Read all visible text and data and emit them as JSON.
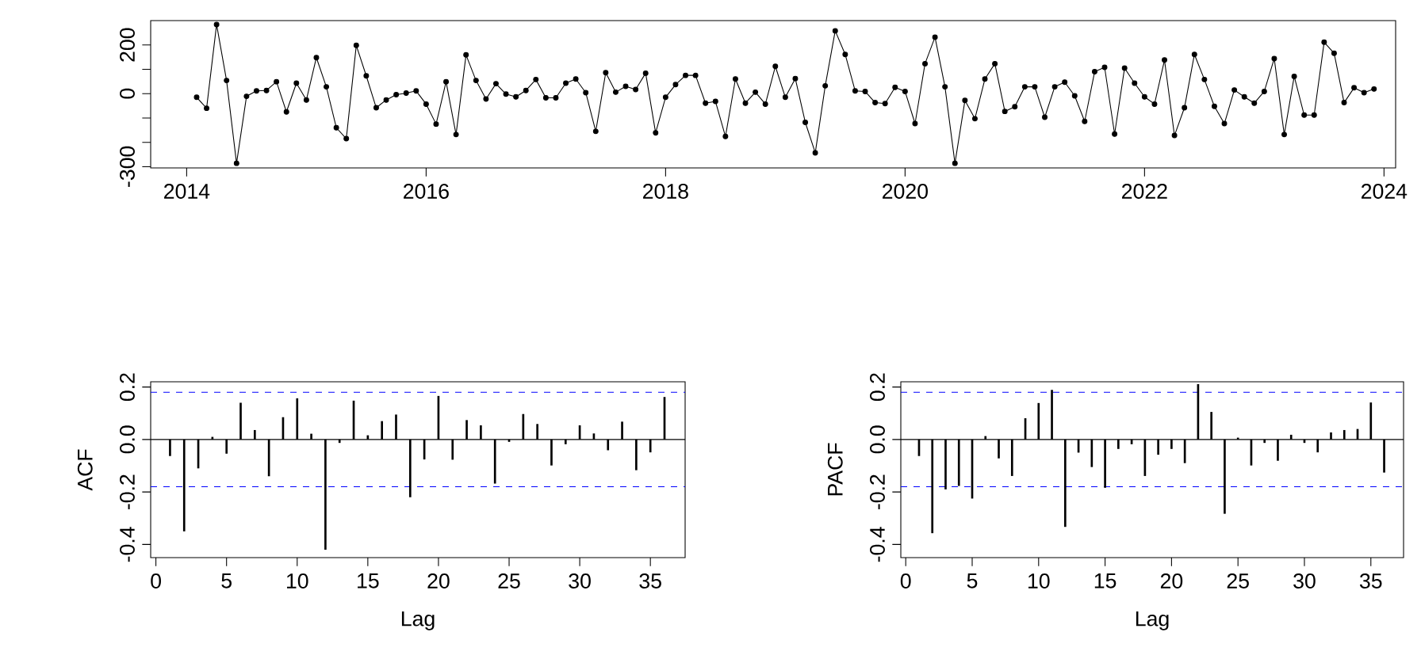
{
  "chart_data": [
    {
      "type": "line",
      "color": "#000000",
      "marker": "circle",
      "line_style": "solid",
      "x": [
        "2014-02",
        "2014-03",
        "2014-04",
        "2014-05",
        "2014-06",
        "2014-07",
        "2014-08",
        "2014-09",
        "2014-10",
        "2014-11",
        "2014-12",
        "2015-01",
        "2015-02",
        "2015-03",
        "2015-04",
        "2015-05",
        "2015-06",
        "2015-07",
        "2015-08",
        "2015-09",
        "2015-10",
        "2015-11",
        "2015-12",
        "2016-01",
        "2016-02",
        "2016-03",
        "2016-04",
        "2016-05",
        "2016-06",
        "2016-07",
        "2016-08",
        "2016-09",
        "2016-10",
        "2016-11",
        "2016-12",
        "2017-01",
        "2017-02",
        "2017-03",
        "2017-04",
        "2017-05",
        "2017-06",
        "2017-07",
        "2017-08",
        "2017-09",
        "2017-10",
        "2017-11",
        "2017-12",
        "2018-01",
        "2018-02",
        "2018-03",
        "2018-04",
        "2018-05",
        "2018-06",
        "2018-07",
        "2018-08",
        "2018-09",
        "2018-10",
        "2018-11",
        "2018-12",
        "2019-01",
        "2019-02",
        "2019-03",
        "2019-04",
        "2019-05",
        "2019-06",
        "2019-07",
        "2019-08",
        "2019-09",
        "2019-10",
        "2019-11",
        "2019-12",
        "2020-01",
        "2020-02",
        "2020-03",
        "2020-04",
        "2020-05",
        "2020-06",
        "2020-07",
        "2020-08",
        "2020-09",
        "2020-10",
        "2020-11",
        "2020-12",
        "2021-01",
        "2021-02",
        "2021-03",
        "2021-04",
        "2021-05",
        "2021-06",
        "2021-07",
        "2021-08",
        "2021-09",
        "2021-10",
        "2021-11",
        "2021-12",
        "2022-01",
        "2022-02",
        "2022-03",
        "2022-04",
        "2022-05",
        "2022-06",
        "2022-07",
        "2022-08",
        "2022-09",
        "2022-10",
        "2022-11",
        "2022-12",
        "2023-01",
        "2023-02",
        "2023-03",
        "2023-04",
        "2023-05",
        "2023-06",
        "2023-07",
        "2023-08",
        "2023-09",
        "2023-10",
        "2023-11",
        "2023-12"
      ],
      "values": [
        -15,
        -60,
        284,
        54,
        -286,
        -11,
        11,
        13,
        49,
        -75,
        43,
        -26,
        148,
        28,
        -140,
        -185,
        198,
        73,
        -58,
        -26,
        -4,
        2,
        11,
        -43,
        -125,
        49,
        -168,
        159,
        54,
        -22,
        41,
        -2,
        -13,
        13,
        58,
        -17,
        -17,
        43,
        60,
        4,
        -155,
        86,
        6,
        30,
        17,
        84,
        -161,
        -15,
        37,
        75,
        75,
        -39,
        -32,
        -176,
        60,
        -39,
        6,
        -43,
        112,
        -15,
        62,
        -118,
        -243,
        32,
        258,
        161,
        11,
        9,
        -37,
        -41,
        26,
        9,
        -123,
        123,
        232,
        28,
        -286,
        -28,
        -103,
        60,
        123,
        -73,
        -54,
        28,
        28,
        -97,
        28,
        47,
        -9,
        -114,
        90,
        108,
        -166,
        105,
        43,
        -13,
        -43,
        138,
        -172,
        -58,
        161,
        58,
        -52,
        -123,
        15,
        -13,
        -39,
        9,
        144,
        -168,
        71,
        -88,
        -88,
        211,
        166,
        -37,
        24,
        4,
        19
      ],
      "xlim": [
        "2013-09-13",
        "2024-02-06"
      ],
      "xticks": [
        "2014",
        "2016",
        "2018",
        "2020",
        "2022",
        "2024"
      ],
      "ylim": [
        -305,
        300
      ],
      "yticks": [
        {
          "value": -300,
          "label": "-300"
        },
        {
          "value": -200,
          "label": null
        },
        {
          "value": -100,
          "label": null
        },
        {
          "value": 0,
          "label": "0"
        },
        {
          "value": 100,
          "label": null
        },
        {
          "value": 200,
          "label": "200"
        }
      ]
    },
    {
      "type": "bar",
      "color": "#000000",
      "xlabel": "Lag",
      "ylabel": "ACF",
      "x": [
        1,
        2,
        3,
        4,
        5,
        6,
        7,
        8,
        9,
        10,
        11,
        12,
        13,
        14,
        15,
        16,
        17,
        18,
        19,
        20,
        21,
        22,
        23,
        24,
        25,
        26,
        27,
        28,
        29,
        30,
        31,
        32,
        33,
        34,
        35,
        36
      ],
      "values": [
        -0.063,
        -0.35,
        -0.11,
        0.01,
        -0.054,
        0.14,
        0.036,
        -0.14,
        0.085,
        0.157,
        0.022,
        -0.42,
        -0.013,
        0.148,
        0.016,
        0.07,
        0.095,
        -0.22,
        -0.076,
        0.166,
        -0.077,
        0.074,
        0.054,
        -0.168,
        -0.009,
        0.097,
        0.059,
        -0.099,
        -0.018,
        0.054,
        0.023,
        -0.041,
        0.068,
        -0.117,
        -0.049,
        0.162
      ],
      "xlim": [
        -0.37,
        37.46
      ],
      "xticks": [
        0,
        5,
        10,
        15,
        20,
        25,
        30,
        35
      ],
      "ylim": [
        -0.45,
        0.22
      ],
      "yticks": [
        {
          "value": -0.4,
          "label": "-0.4"
        },
        {
          "value": -0.2,
          "label": "-0.2"
        },
        {
          "value": 0,
          "label": "0.0"
        },
        {
          "value": 0.2,
          "label": "0.2"
        }
      ],
      "ref_lines": [
        {
          "axis": "y",
          "value": 0,
          "color": "#000000",
          "line_style": "solid"
        },
        {
          "axis": "y",
          "value": 0.18,
          "color": "#0000ff",
          "line_style": "dashed"
        },
        {
          "axis": "y",
          "value": -0.18,
          "color": "#0000ff",
          "line_style": "dashed"
        }
      ]
    },
    {
      "type": "bar",
      "color": "#000000",
      "xlabel": "Lag",
      "ylabel": "PACF",
      "x": [
        1,
        2,
        3,
        4,
        5,
        6,
        7,
        8,
        9,
        10,
        11,
        12,
        13,
        14,
        15,
        16,
        17,
        18,
        19,
        20,
        21,
        22,
        23,
        24,
        25,
        26,
        27,
        28,
        29,
        30,
        31,
        32,
        33,
        34,
        35,
        36
      ],
      "values": [
        -0.063,
        -0.357,
        -0.19,
        -0.177,
        -0.225,
        0.013,
        -0.072,
        -0.139,
        0.081,
        0.139,
        0.189,
        -0.333,
        -0.05,
        -0.105,
        -0.184,
        -0.036,
        -0.018,
        -0.139,
        -0.058,
        -0.036,
        -0.09,
        0.211,
        0.105,
        -0.283,
        0.007,
        -0.099,
        -0.013,
        -0.081,
        0.018,
        -0.013,
        -0.049,
        0.027,
        0.036,
        0.04,
        0.141,
        -0.126
      ],
      "xlim": [
        -0.37,
        37.46
      ],
      "xticks": [
        0,
        5,
        10,
        15,
        20,
        25,
        30,
        35
      ],
      "ylim": [
        -0.45,
        0.22
      ],
      "yticks": [
        {
          "value": -0.4,
          "label": "-0.4"
        },
        {
          "value": -0.2,
          "label": "-0.2"
        },
        {
          "value": 0,
          "label": "0.0"
        },
        {
          "value": 0.2,
          "label": "0.2"
        }
      ],
      "ref_lines": [
        {
          "axis": "y",
          "value": 0,
          "color": "#000000",
          "line_style": "solid"
        },
        {
          "axis": "y",
          "value": 0.18,
          "color": "#0000ff",
          "line_style": "dashed"
        },
        {
          "axis": "y",
          "value": -0.18,
          "color": "#0000ff",
          "line_style": "dashed"
        }
      ]
    }
  ]
}
